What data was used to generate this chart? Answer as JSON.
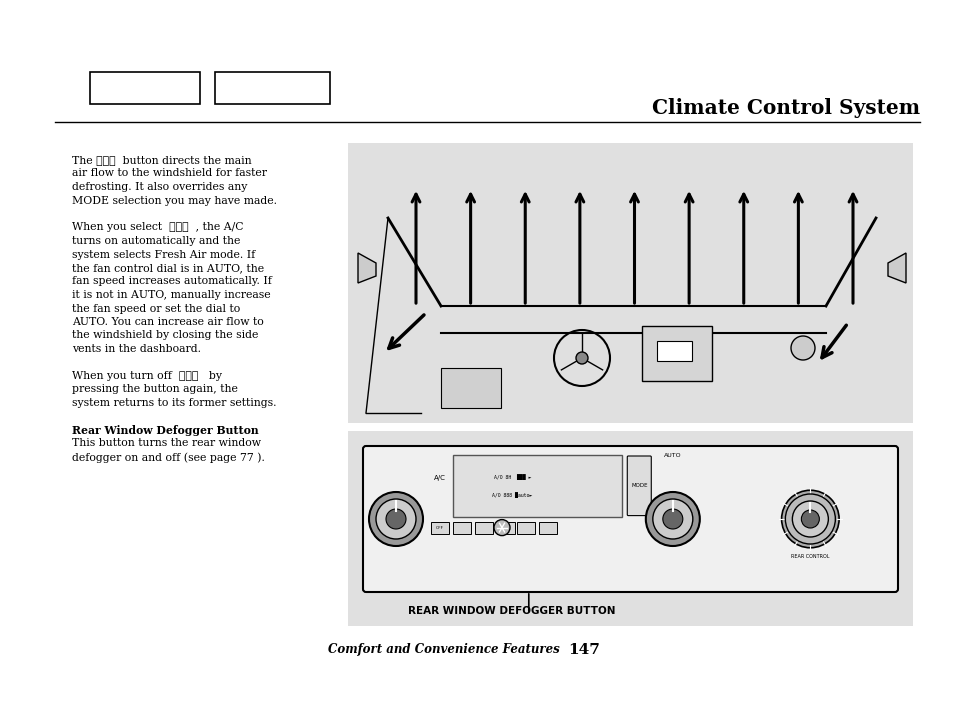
{
  "page_bg": "#ffffff",
  "title": "Climate Control System",
  "diagram_bg": "#e0e0e0",
  "footer_text": "Comfort and Convenience Features",
  "footer_page": "147",
  "defogger_label": "REAR WINDOW DEFOGGER BUTTON",
  "text_col1": [
    {
      "text": "The",
      "bold": false
    },
    {
      "text": " button directs the main",
      "bold": false
    },
    {
      "text": "air flow to the windshield for faster",
      "bold": false
    },
    {
      "text": "defrosting. It also overrides any",
      "bold": false
    },
    {
      "text": "MODE selection you may have made.",
      "bold": false
    },
    {
      "text": "",
      "bold": false
    },
    {
      "text": "When you select",
      "bold": false
    },
    {
      "text": " , the A/C",
      "bold": false
    },
    {
      "text": "turns on automatically and the",
      "bold": false
    },
    {
      "text": "system selects Fresh Air mode. If",
      "bold": false
    },
    {
      "text": "the fan control dial is in AUTO, the",
      "bold": false
    },
    {
      "text": "fan speed increases automatically. If",
      "bold": false
    },
    {
      "text": "it is not in AUTO, manually increase",
      "bold": false
    },
    {
      "text": "the fan speed or set the dial to",
      "bold": false
    },
    {
      "text": "AUTO. You can increase air flow to",
      "bold": false
    },
    {
      "text": "the windshield by closing the side",
      "bold": false
    },
    {
      "text": "vents in the dashboard.",
      "bold": false
    },
    {
      "text": "",
      "bold": false
    },
    {
      "text": "When you turn off",
      "bold": false
    },
    {
      "text": "  by",
      "bold": false
    },
    {
      "text": "pressing the button again, the",
      "bold": false
    },
    {
      "text": "system returns to its former settings.",
      "bold": false
    },
    {
      "text": "",
      "bold": false
    },
    {
      "text": "Rear Window Defogger Button",
      "bold": true
    },
    {
      "text": "This button turns the rear window",
      "bold": false
    },
    {
      "text": "defogger on and off (see page 77 ).",
      "bold": false
    }
  ]
}
